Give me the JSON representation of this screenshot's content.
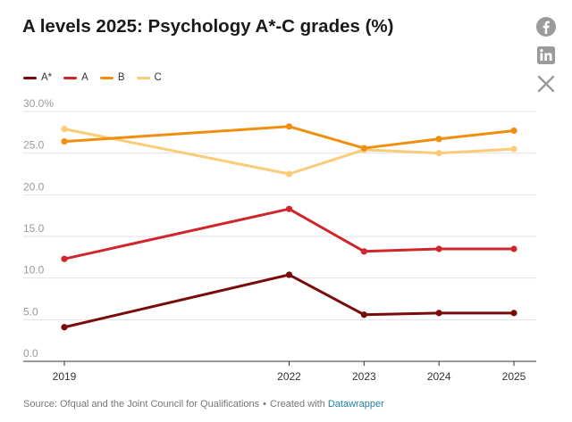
{
  "title": "A levels 2025: Psychology A*-C grades (%)",
  "share": {
    "facebook": "facebook-icon",
    "linkedin": "linkedin-icon",
    "x": "x-icon"
  },
  "footer": {
    "source": "Source: Ofqual and the Joint Council for Qualifications",
    "separator": "•",
    "created_with": "Created with",
    "tool": "Datawrapper"
  },
  "chart_data": {
    "type": "line",
    "title": "A levels 2025: Psychology A*-C grades (%)",
    "xlabel": "",
    "ylabel": "",
    "x": [
      2019,
      2022,
      2023,
      2024,
      2025
    ],
    "x_tick_labels": [
      "2019",
      "2022",
      "2023",
      "2024",
      "2025"
    ],
    "ylim": [
      0,
      30
    ],
    "y_ticks": [
      0,
      5,
      10,
      15,
      20,
      25,
      30
    ],
    "y_tick_labels": [
      "0.0",
      "5.0",
      "10.0",
      "15.0",
      "20.0",
      "25.0",
      "30.0%"
    ],
    "grid": true,
    "legend_position": "top-left",
    "series": [
      {
        "name": "A*",
        "color": "#7b0a0a",
        "values": [
          4.1,
          10.4,
          5.6,
          5.8,
          5.8
        ]
      },
      {
        "name": "A",
        "color": "#d0262b",
        "values": [
          12.3,
          18.3,
          13.2,
          13.5,
          13.5
        ]
      },
      {
        "name": "B",
        "color": "#f08f0f",
        "values": [
          26.4,
          28.2,
          25.6,
          26.7,
          27.7
        ]
      },
      {
        "name": "C",
        "color": "#fccb78",
        "values": [
          27.9,
          22.5,
          25.4,
          25.0,
          25.5
        ]
      }
    ]
  }
}
